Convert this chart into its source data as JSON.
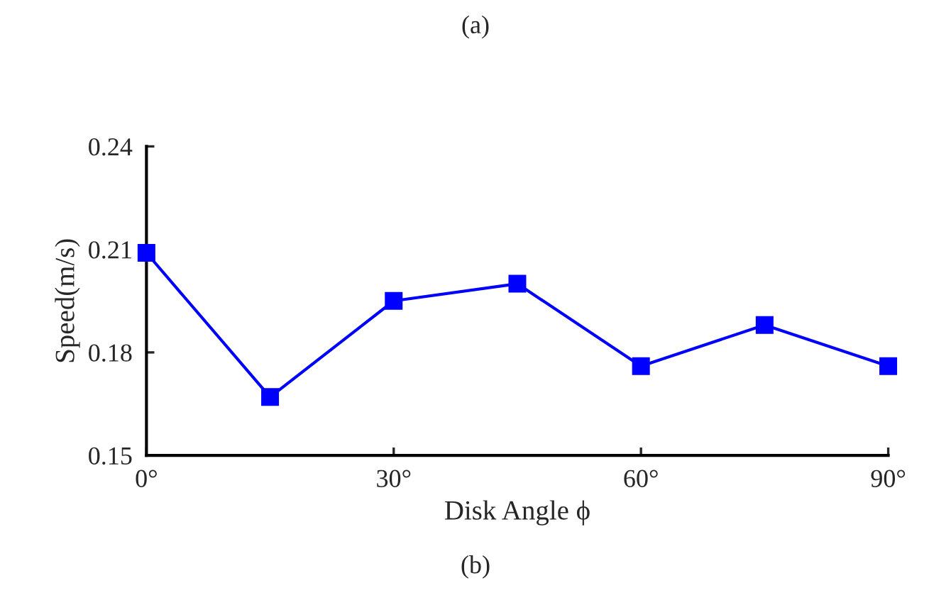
{
  "chart_data": {
    "type": "line",
    "xlabel": "Disk Angle ϕ",
    "ylabel": "Speed(m/s)",
    "x": [
      0,
      15,
      30,
      45,
      60,
      75,
      90
    ],
    "series": [
      {
        "color": "#0000ff",
        "values": [
          0.209,
          0.167,
          0.195,
          0.2,
          0.176,
          0.188,
          0.176
        ]
      }
    ],
    "xlim": [
      0,
      90
    ],
    "xticks": [
      {
        "value": 0,
        "label": "0°"
      },
      {
        "value": 30,
        "label": "30°"
      },
      {
        "value": 60,
        "label": "60°"
      },
      {
        "value": 90,
        "label": "90°"
      }
    ],
    "ylim": [
      0.15,
      0.24
    ],
    "yticks": [
      {
        "value": 0.15,
        "label": "0.15"
      },
      {
        "value": 0.18,
        "label": "0.18"
      },
      {
        "value": 0.21,
        "label": "0.21"
      },
      {
        "value": 0.24,
        "label": "0.24"
      }
    ],
    "marker": "square",
    "line_style": "solid",
    "grid": false,
    "legend": false,
    "annotations": [
      "(a)",
      "(b)"
    ]
  }
}
